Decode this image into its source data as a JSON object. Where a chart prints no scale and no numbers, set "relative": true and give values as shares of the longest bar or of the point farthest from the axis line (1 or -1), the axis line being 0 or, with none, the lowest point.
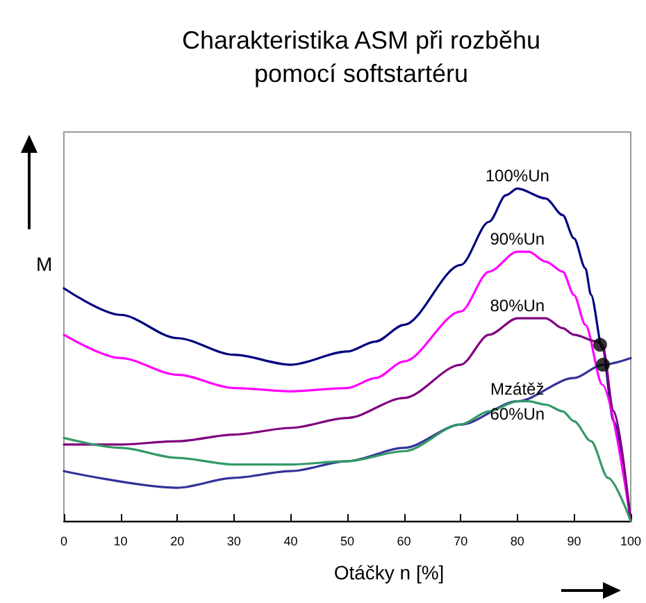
{
  "chart_data": {
    "type": "line",
    "title": "Charakteristika ASM při rozběhu\npomocí softstartéru",
    "xlabel": "Otáčky n [%]",
    "ylabel": "M",
    "relative": true,
    "xlim": [
      0,
      100
    ],
    "xticks": [
      0,
      10,
      20,
      30,
      40,
      50,
      60,
      70,
      80,
      90,
      100
    ],
    "grid": false,
    "legend": false,
    "marker": "none",
    "line_style": "solid",
    "series": [
      {
        "name": "100%Un",
        "color": "#000080",
        "x": [
          0,
          10,
          20,
          30,
          40,
          50,
          55,
          60,
          70,
          75,
          78,
          80,
          85,
          88,
          90,
          92,
          93,
          95,
          97,
          100
        ],
        "values": [
          0.7,
          0.62,
          0.55,
          0.5,
          0.47,
          0.51,
          0.54,
          0.59,
          0.77,
          0.9,
          0.98,
          1.0,
          0.97,
          0.92,
          0.85,
          0.76,
          0.68,
          0.52,
          0.3,
          0
        ]
      },
      {
        "name": "90%Un",
        "color": "#ff00ff",
        "x": [
          0,
          10,
          20,
          30,
          40,
          50,
          55,
          60,
          70,
          75,
          80,
          82,
          85,
          88,
          90,
          92,
          95,
          100
        ],
        "values": [
          0.56,
          0.49,
          0.44,
          0.4,
          0.39,
          0.4,
          0.43,
          0.48,
          0.63,
          0.75,
          0.81,
          0.81,
          0.78,
          0.75,
          0.68,
          0.59,
          0.41,
          0
        ]
      },
      {
        "name": "80%Un",
        "color": "#800080",
        "x": [
          0,
          10,
          20,
          30,
          40,
          50,
          60,
          70,
          75,
          80,
          83,
          85,
          88,
          90,
          94,
          95,
          97,
          100
        ],
        "values": [
          0.23,
          0.23,
          0.24,
          0.26,
          0.28,
          0.31,
          0.37,
          0.47,
          0.56,
          0.61,
          0.61,
          0.61,
          0.58,
          0.56,
          0.54,
          0.53,
          0.33,
          0
        ]
      },
      {
        "name": "Mzátěž",
        "color": "#333399",
        "x": [
          0,
          20,
          30,
          40,
          50,
          60,
          70,
          80,
          90,
          95,
          100
        ],
        "values": [
          0.15,
          0.1,
          0.13,
          0.15,
          0.18,
          0.22,
          0.29,
          0.36,
          0.43,
          0.47,
          0.49
        ]
      },
      {
        "name": "60%Un",
        "color": "#339966",
        "x": [
          0,
          10,
          20,
          30,
          40,
          50,
          60,
          70,
          75,
          80,
          82,
          85,
          88,
          90,
          93,
          96,
          100
        ],
        "values": [
          0.25,
          0.22,
          0.19,
          0.17,
          0.17,
          0.18,
          0.21,
          0.29,
          0.33,
          0.36,
          0.36,
          0.35,
          0.33,
          0.3,
          0.24,
          0.13,
          0
        ]
      },
      {
        "type": "scatter",
        "color": "#000000",
        "marker": "circle",
        "x": [
          94.6,
          95.1
        ],
        "values": [
          0.53,
          0.47
        ]
      }
    ]
  }
}
